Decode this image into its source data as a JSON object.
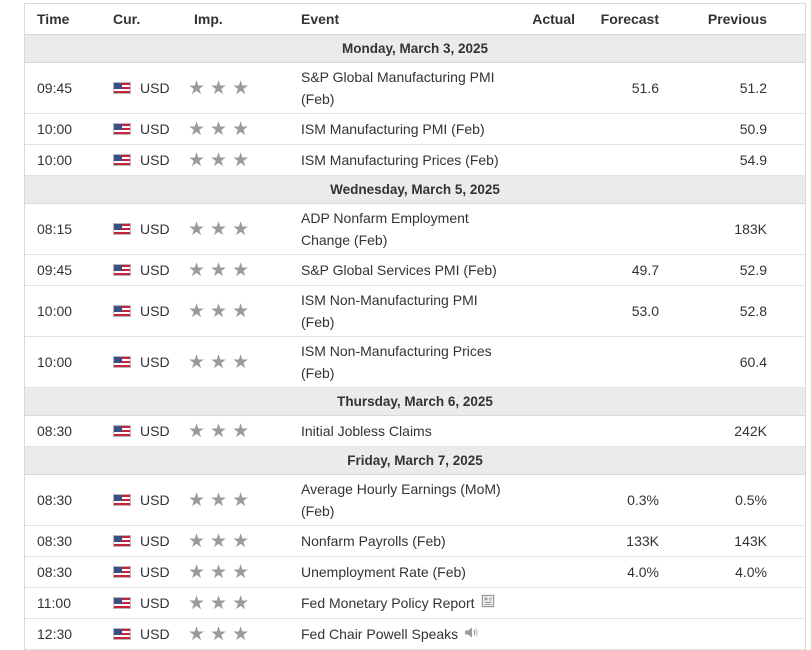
{
  "columns": {
    "time": "Time",
    "currency": "Cur.",
    "importance": "Imp.",
    "event": "Event",
    "actual": "Actual",
    "forecast": "Forecast",
    "previous": "Previous"
  },
  "colors": {
    "stars": "#9b9b9b",
    "day_header_bg": "#ebebeb",
    "border": "#d9d9d9"
  },
  "days": [
    {
      "label": "Monday, March 3, 2025",
      "events": [
        {
          "time": "09:45",
          "currency": "USD",
          "event_line1": "S&P Global Manufacturing PMI",
          "event_line2": "(Feb)",
          "actual": "",
          "forecast": "51.6",
          "previous": "51.2"
        },
        {
          "time": "10:00",
          "currency": "USD",
          "event_line1": "ISM Manufacturing PMI (Feb)",
          "event_line2": "",
          "actual": "",
          "forecast": "",
          "previous": "50.9"
        },
        {
          "time": "10:00",
          "currency": "USD",
          "event_line1": "ISM Manufacturing Prices (Feb)",
          "event_line2": "",
          "actual": "",
          "forecast": "",
          "previous": "54.9"
        }
      ]
    },
    {
      "label": "Wednesday, March 5, 2025",
      "events": [
        {
          "time": "08:15",
          "currency": "USD",
          "event_line1": "ADP Nonfarm Employment",
          "event_line2": "Change (Feb)",
          "actual": "",
          "forecast": "",
          "previous": "183K"
        },
        {
          "time": "09:45",
          "currency": "USD",
          "event_line1": "S&P Global Services PMI (Feb)",
          "event_line2": "",
          "actual": "",
          "forecast": "49.7",
          "previous": "52.9"
        },
        {
          "time": "10:00",
          "currency": "USD",
          "event_line1": "ISM Non-Manufacturing PMI",
          "event_line2": "(Feb)",
          "actual": "",
          "forecast": "53.0",
          "previous": "52.8"
        },
        {
          "time": "10:00",
          "currency": "USD",
          "event_line1": "ISM Non-Manufacturing Prices",
          "event_line2": "(Feb)",
          "actual": "",
          "forecast": "",
          "previous": "60.4"
        }
      ]
    },
    {
      "label": "Thursday, March 6, 2025",
      "events": [
        {
          "time": "08:30",
          "currency": "USD",
          "event_line1": "Initial Jobless Claims",
          "event_line2": "",
          "actual": "",
          "forecast": "",
          "previous": "242K"
        }
      ]
    },
    {
      "label": "Friday, March 7, 2025",
      "events": [
        {
          "time": "08:30",
          "currency": "USD",
          "event_line1": "Average Hourly Earnings (MoM)",
          "event_line2": "(Feb)",
          "actual": "",
          "forecast": "0.3%",
          "previous": "0.5%"
        },
        {
          "time": "08:30",
          "currency": "USD",
          "event_line1": "Nonfarm Payrolls (Feb)",
          "event_line2": "",
          "actual": "",
          "forecast": "133K",
          "previous": "143K"
        },
        {
          "time": "08:30",
          "currency": "USD",
          "event_line1": "Unemployment Rate (Feb)",
          "event_line2": "",
          "actual": "",
          "forecast": "4.0%",
          "previous": "4.0%"
        },
        {
          "time": "11:00",
          "currency": "USD",
          "event_line1": "Fed Monetary Policy Report",
          "event_line2": "",
          "icon": "document-icon",
          "actual": "",
          "forecast": "",
          "previous": ""
        },
        {
          "time": "12:30",
          "currency": "USD",
          "event_line1": "Fed Chair Powell Speaks",
          "event_line2": "",
          "icon": "speaker-icon",
          "actual": "",
          "forecast": "",
          "previous": ""
        }
      ]
    }
  ]
}
